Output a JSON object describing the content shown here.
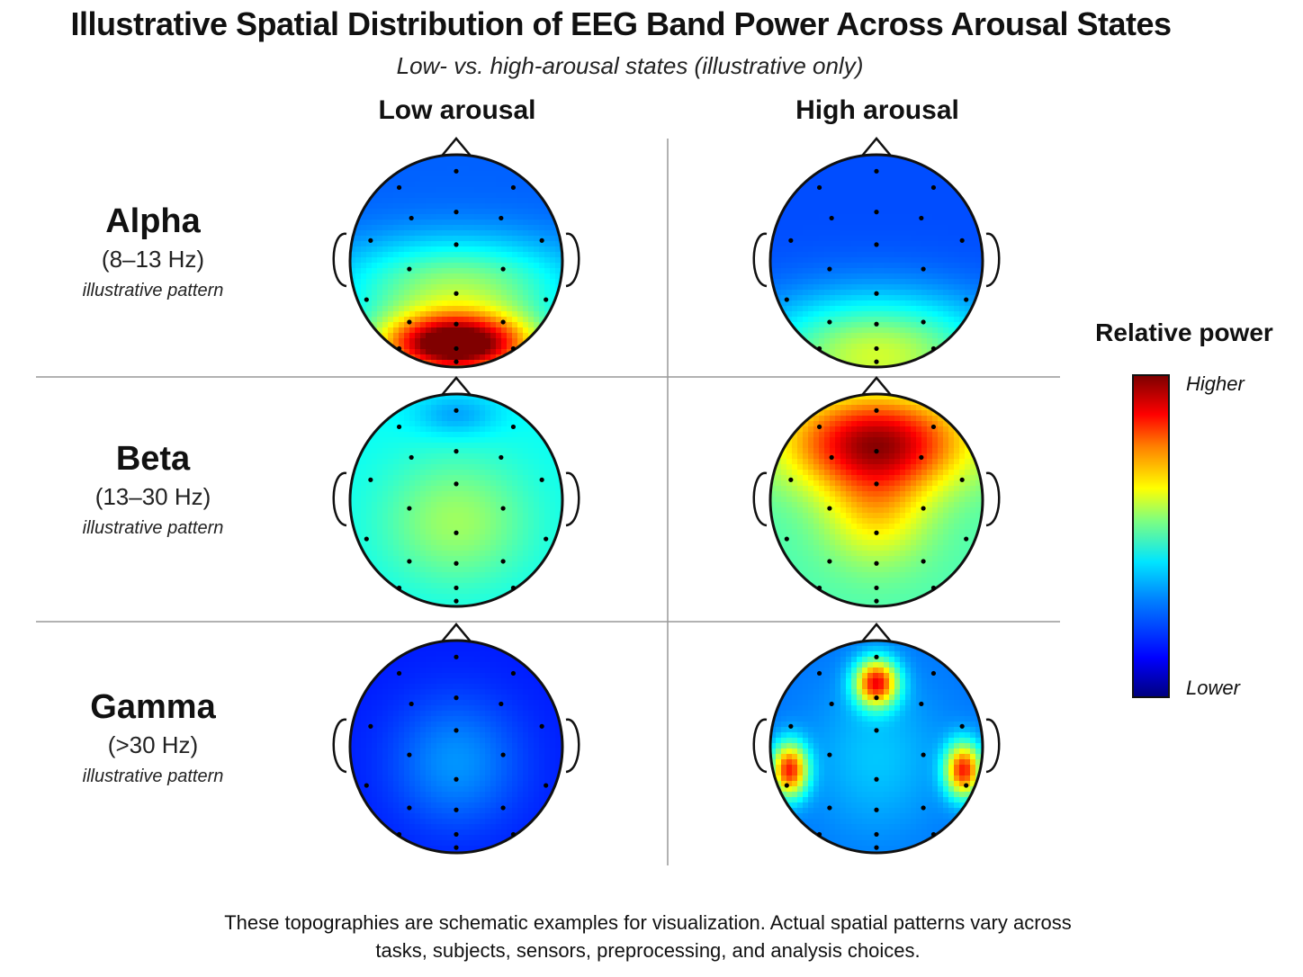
{
  "title": "Illustrative Spatial Distribution of EEG Band Power Across Arousal States",
  "subtitle": "Low- vs. high-arousal states (illustrative only)",
  "columns": [
    "Low arousal",
    "High arousal"
  ],
  "rows": [
    {
      "name": "Alpha",
      "range": "(8–13 Hz)",
      "note": "illustrative pattern"
    },
    {
      "name": "Beta",
      "range": "(13–30 Hz)",
      "note": "illustrative pattern"
    },
    {
      "name": "Gamma",
      "range": "(>30 Hz)",
      "note": "illustrative pattern"
    }
  ],
  "legend": {
    "title": "Relative power",
    "high": "Higher",
    "low": "Lower"
  },
  "footnote": {
    "line1": "These topographies are schematic examples for visualization. Actual spatial patterns vary across",
    "line2": "tasks, subjects, sensors, preprocessing, and analysis choices."
  },
  "colors": {
    "low": "#00007f",
    "mid": "#7fff7f",
    "high": "#7f0000"
  },
  "chart_data": {
    "type": "heatmap",
    "description_scale": "relative power 0 (lower) to 1 (higher)",
    "maps": [
      {
        "band": "Alpha",
        "state": "Low arousal",
        "base": 0.22,
        "blobs": [
          {
            "x": 0,
            "y": 0.8,
            "sx": 0.75,
            "sy": 0.3,
            "a": 0.85
          },
          {
            "x": 0,
            "y": 0.25,
            "sx": 1.1,
            "sy": 0.45,
            "a": 0.3
          }
        ]
      },
      {
        "band": "Alpha",
        "state": "High arousal",
        "base": 0.2,
        "blobs": [
          {
            "x": 0,
            "y": 0.9,
            "sx": 1.1,
            "sy": 0.55,
            "a": 0.38
          }
        ]
      },
      {
        "band": "Beta",
        "state": "Low arousal",
        "base": 0.38,
        "blobs": [
          {
            "x": 0,
            "y": 0.2,
            "sx": 0.7,
            "sy": 0.6,
            "a": 0.15
          },
          {
            "x": 0,
            "y": -0.8,
            "sx": 0.4,
            "sy": 0.2,
            "a": -0.1
          }
        ]
      },
      {
        "band": "Beta",
        "state": "High arousal",
        "base": 0.45,
        "blobs": [
          {
            "x": 0,
            "y": -0.55,
            "sx": 0.85,
            "sy": 0.45,
            "a": 0.5
          },
          {
            "x": 0,
            "y": 0.1,
            "sx": 0.5,
            "sy": 0.5,
            "a": 0.2
          }
        ]
      },
      {
        "band": "Gamma",
        "state": "Low arousal",
        "base": 0.15,
        "blobs": [
          {
            "x": 0,
            "y": 0.15,
            "sx": 0.6,
            "sy": 0.6,
            "a": 0.12
          }
        ]
      },
      {
        "band": "Gamma",
        "state": "High arousal",
        "base": 0.24,
        "blobs": [
          {
            "x": 0,
            "y": -0.6,
            "sx": 0.2,
            "sy": 0.22,
            "a": 0.62
          },
          {
            "x": -0.82,
            "y": 0.22,
            "sx": 0.17,
            "sy": 0.25,
            "a": 0.6
          },
          {
            "x": 0.82,
            "y": 0.22,
            "sx": 0.17,
            "sy": 0.25,
            "a": 0.6
          },
          {
            "x": 0,
            "y": 0.1,
            "sx": 0.6,
            "sy": 0.7,
            "a": 0.08
          }
        ]
      }
    ],
    "electrodes": [
      [
        0,
        -0.88
      ],
      [
        -0.56,
        -0.72
      ],
      [
        0.56,
        -0.72
      ],
      [
        -0.44,
        -0.42
      ],
      [
        0,
        -0.48
      ],
      [
        0.44,
        -0.42
      ],
      [
        -0.84,
        -0.2
      ],
      [
        0,
        -0.16
      ],
      [
        0.84,
        -0.2
      ],
      [
        -0.46,
        0.08
      ],
      [
        0.46,
        0.08
      ],
      [
        -0.88,
        0.38
      ],
      [
        0,
        0.32
      ],
      [
        0.88,
        0.38
      ],
      [
        -0.46,
        0.6
      ],
      [
        0.46,
        0.6
      ],
      [
        0,
        0.62
      ],
      [
        -0.56,
        0.86
      ],
      [
        0.56,
        0.86
      ],
      [
        0,
        0.86
      ],
      [
        0,
        0.99
      ]
    ]
  }
}
